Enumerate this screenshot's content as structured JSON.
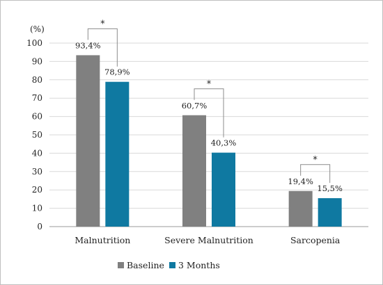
{
  "chart_data": {
    "type": "bar",
    "ylabel": "(%)",
    "ylim": [
      0,
      100
    ],
    "ytick_step": 10,
    "grid": true,
    "legend_position": "bottom",
    "categories": [
      "Malnutrition",
      "Severe Malnutrition",
      "Sarcopenia"
    ],
    "series": [
      {
        "name": "Baseline",
        "color": "#808080",
        "values": [
          93.4,
          60.7,
          19.4
        ],
        "labels": [
          "93,4%",
          "60,7%",
          "19,4%"
        ]
      },
      {
        "name": "3 Months",
        "color": "#0f79a1",
        "values": [
          78.9,
          40.3,
          15.5
        ],
        "labels": [
          "78,9%",
          "40,3%",
          "15,5%"
        ]
      }
    ],
    "significance_marker": "*"
  }
}
